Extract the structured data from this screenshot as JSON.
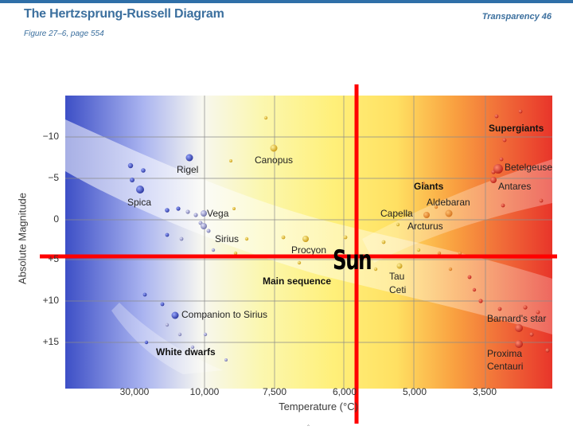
{
  "header": {
    "title": "The Hertzsprung-Russell Diagram",
    "subtitle": "Figure 27–6, page 554",
    "right_label": "Transparency 46"
  },
  "axes": {
    "ylabel": "Absolute Magnitude",
    "xlabel": "Temperature (°C)",
    "yticks": [
      "−10",
      "−5",
      "0",
      "+5",
      "+10",
      "+15"
    ],
    "xticks": [
      "30,000",
      "10,000",
      "7,500",
      "6,000",
      "5,000",
      "3,500"
    ]
  },
  "regions": {
    "supergiants": "Supergiants",
    "giants": "Giants",
    "main_sequence": "Main sequence",
    "white_dwarfs": "White dwarfs"
  },
  "stars": [
    {
      "name": "Rigel",
      "temp": "",
      "mag": -7
    },
    {
      "name": "Spica",
      "temp": "",
      "mag": -3.5
    },
    {
      "name": "Canopus",
      "temp": "",
      "mag": -8.5
    },
    {
      "name": "Vega",
      "temp": "",
      "mag": 0.5
    },
    {
      "name": "Sirius",
      "temp": "",
      "mag": 1.5
    },
    {
      "name": "Procyon",
      "temp": "",
      "mag": 2.6
    },
    {
      "name": "Capella",
      "temp": "",
      "mag": 0.2
    },
    {
      "name": "Aldebaran",
      "temp": "",
      "mag": -0.3
    },
    {
      "name": "Arcturus",
      "temp": "",
      "mag": 0
    },
    {
      "name": "Betelgeuse",
      "temp": "",
      "mag": -6
    },
    {
      "name": "Antares",
      "temp": "",
      "mag": -5
    },
    {
      "name": "Tau Ceti",
      "temp": "",
      "mag": 5.7
    },
    {
      "name": "Companion to Sirius",
      "temp": "",
      "mag": 11.5
    },
    {
      "name": "Barnard's star",
      "temp": "",
      "mag": 13.2
    },
    {
      "name": "Proxima Centauri",
      "temp": "",
      "mag": 15.5
    }
  ],
  "annotation": {
    "sun_label": "Sun",
    "marker_color": "#ff0000"
  },
  "colors": {
    "header_blue": "#3b6f9e",
    "hot_blue": "#4c5fd0",
    "mid_yellow": "#fff27a",
    "cool_red": "#ec2a25"
  }
}
